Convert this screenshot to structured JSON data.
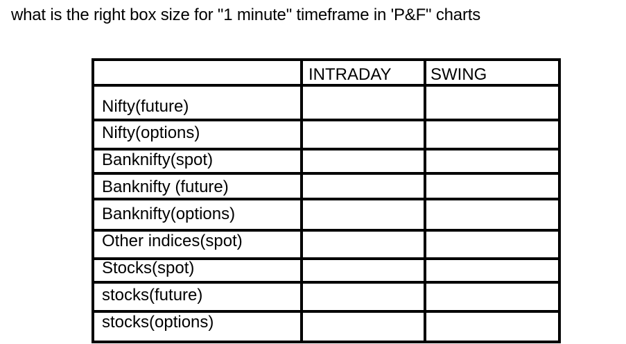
{
  "question": "what is the right box size for \"1 minute\" timeframe in 'P&F\" charts",
  "table": {
    "headers": [
      "",
      "INTRADAY",
      "SWING"
    ],
    "rows": [
      {
        "label": "Nifty(future)",
        "intraday": "",
        "swing": ""
      },
      {
        "label": "Nifty(options)",
        "intraday": "",
        "swing": ""
      },
      {
        "label": "Banknifty(spot)",
        "intraday": "",
        "swing": ""
      },
      {
        "label": "Banknifty (future)",
        "intraday": "",
        "swing": ""
      },
      {
        "label": "Banknifty(options)",
        "intraday": "",
        "swing": ""
      },
      {
        "label": "Other indices(spot)",
        "intraday": "",
        "swing": ""
      },
      {
        "label": "Stocks(spot)",
        "intraday": "",
        "swing": ""
      },
      {
        "label": "stocks(future)",
        "intraday": "",
        "swing": ""
      },
      {
        "label": "stocks(options)",
        "intraday": "",
        "swing": ""
      }
    ]
  }
}
